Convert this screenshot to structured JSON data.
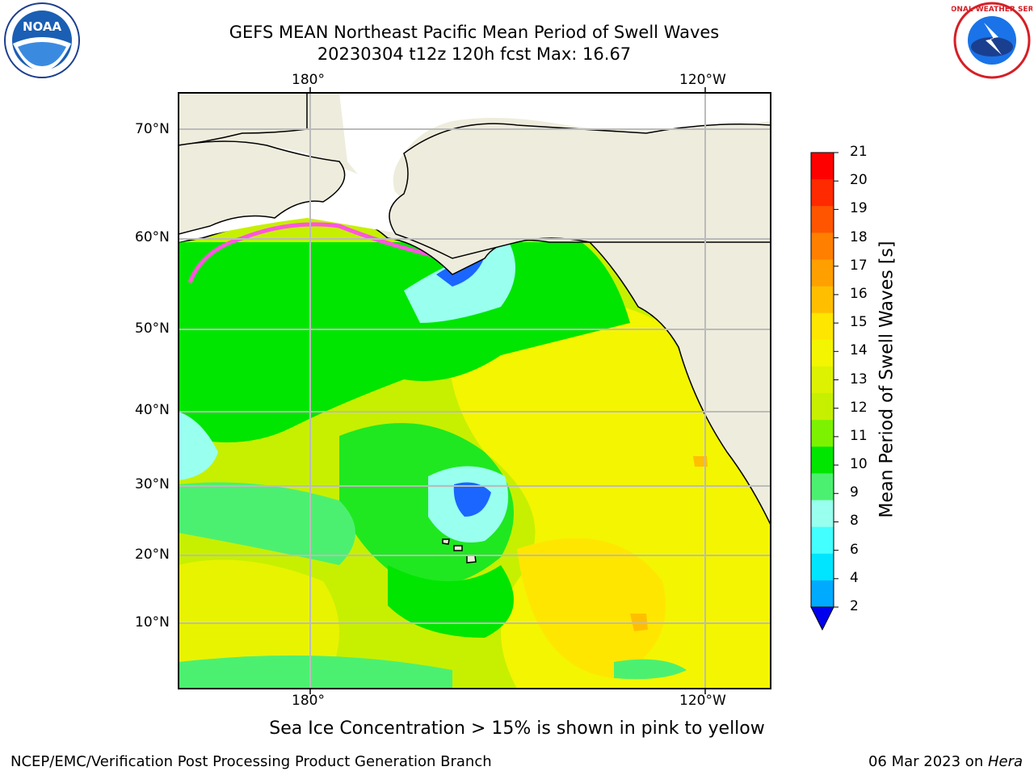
{
  "title": {
    "line1": "GEFS MEAN Northeast Pacific Mean Period of Swell Waves",
    "line2": "20230304 t12z 120h fcst   Max: 16.67"
  },
  "axes": {
    "top_lon": [
      "180°",
      "120°W"
    ],
    "bottom_lon": [
      "180°",
      "120°W"
    ],
    "lat": [
      "70°N",
      "60°N",
      "50°N",
      "40°N",
      "30°N",
      "20°N",
      "10°N"
    ]
  },
  "colorbar": {
    "title": "Mean Period of Swell Waves [s]",
    "ticks": [
      "21",
      "20",
      "19",
      "18",
      "17",
      "16",
      "15",
      "14",
      "13",
      "12",
      "11",
      "10",
      "9",
      "8",
      "6",
      "4",
      "2"
    ],
    "colors": [
      "#ff0000",
      "#ff2a00",
      "#ff5500",
      "#ff7f00",
      "#ff9f00",
      "#ffbf00",
      "#ffe600",
      "#f4f500",
      "#dcf200",
      "#c6f000",
      "#7cf200",
      "#00e600",
      "#4cf070",
      "#99ffee",
      "#44ffff",
      "#00e5ff",
      "#00aaff",
      "#0044ff"
    ],
    "extend_color": "#0000ee"
  },
  "note": "Sea Ice Concentration > 15% is shown in pink to yellow",
  "footer": {
    "left": "NCEP/EMC/Verification Post Processing Product Generation Branch",
    "right_date": "06 Mar 2023 on ",
    "right_host": "Hera"
  },
  "logos": {
    "noaa_text": "NOAA",
    "nws_text": "NATIONAL WEATHER SERVICE"
  },
  "colors": {
    "land": "#eeecdc",
    "grid": "#bbbbbb",
    "swell_green": "#00e600",
    "swell_yellow": "#f4f500",
    "swell_lime": "#c6f000",
    "swell_cyan": "#99ffee",
    "swell_blue": "#1a66ff",
    "ice_pink": "#ff55dd"
  }
}
